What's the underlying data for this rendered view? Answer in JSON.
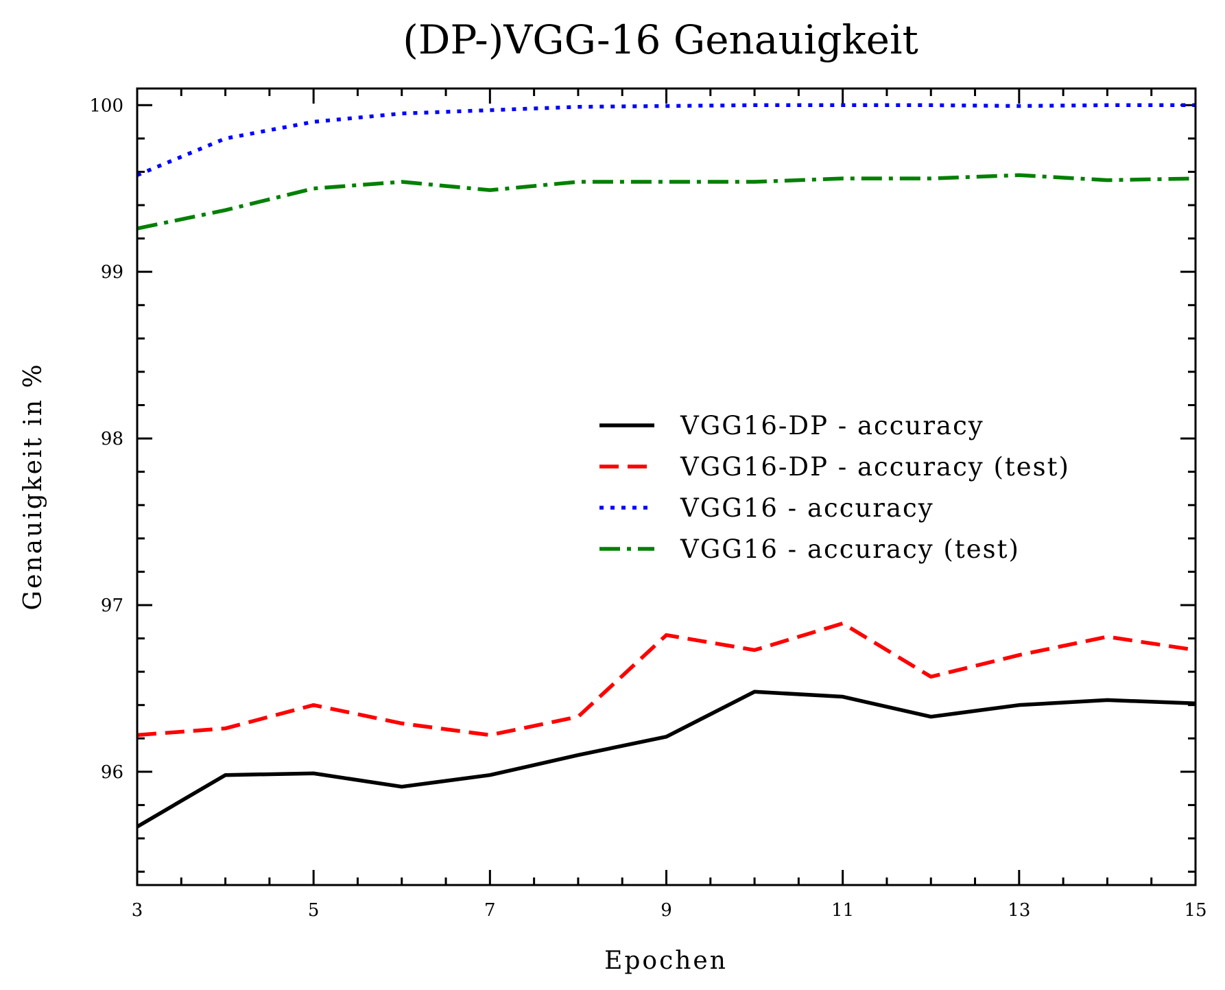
{
  "chart_data": {
    "type": "line",
    "title": "(DP-)VGG-16 Genauigkeit",
    "xlabel": "Epochen",
    "ylabel": "Genauigkeit in %",
    "x": [
      3,
      4,
      5,
      6,
      7,
      8,
      9,
      10,
      11,
      12,
      13,
      14,
      15
    ],
    "xlim": [
      3,
      15
    ],
    "ylim": [
      95.32,
      100.1
    ],
    "xticks": [
      3,
      5,
      7,
      9,
      11,
      13,
      15
    ],
    "yticks": [
      96,
      97,
      98,
      99,
      100
    ],
    "xtick_labels": [
      "3",
      "5",
      "7",
      "9",
      "11",
      "13",
      "15"
    ],
    "ytick_labels": [
      "96",
      "97",
      "98",
      "99",
      "100"
    ],
    "grid": false,
    "legend_position": "center-right",
    "series": [
      {
        "name": "VGG16-DP - accuracy",
        "color": "#000000",
        "dash": "solid",
        "values": [
          95.67,
          95.98,
          95.99,
          95.91,
          95.98,
          96.1,
          96.21,
          96.48,
          96.45,
          96.33,
          96.4,
          96.43,
          96.41
        ]
      },
      {
        "name": "VGG16-DP - accuracy (test)",
        "color": "#ff0000",
        "dash": "dashed",
        "values": [
          96.22,
          96.26,
          96.4,
          96.29,
          96.22,
          96.33,
          96.82,
          96.73,
          96.89,
          96.57,
          96.7,
          96.81,
          96.73
        ]
      },
      {
        "name": "VGG16 - accuracy",
        "color": "#0000ff",
        "dash": "dotted",
        "values": [
          99.58,
          99.8,
          99.9,
          99.95,
          99.97,
          99.99,
          99.995,
          100.0,
          100.0,
          100.0,
          99.995,
          100.0,
          100.0
        ]
      },
      {
        "name": "VGG16 - accuracy (test)",
        "color": "#008000",
        "dash": "dashdot",
        "values": [
          99.26,
          99.37,
          99.5,
          99.54,
          99.49,
          99.54,
          99.54,
          99.54,
          99.56,
          99.56,
          99.58,
          99.55,
          99.56
        ]
      }
    ]
  }
}
